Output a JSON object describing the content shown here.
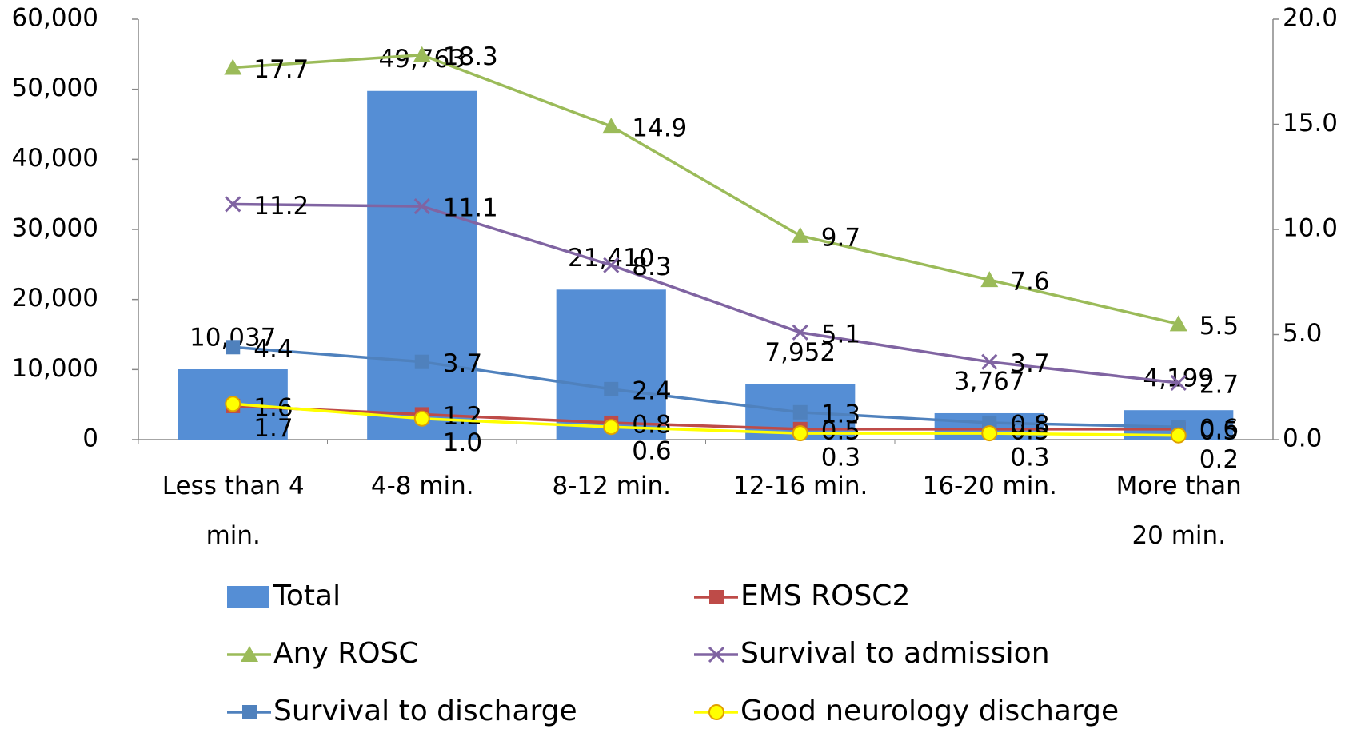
{
  "chart_data": {
    "type": "bar-line",
    "categories": [
      "Less than 4 min.",
      "4-8 min.",
      "8-12 min.",
      "12-16 min.",
      "16-20 min.",
      "More than 20 min."
    ],
    "ylim": [
      0,
      60000
    ],
    "yticks": [
      {
        "value": 0,
        "label": "0"
      },
      {
        "value": 10000,
        "label": "10,000"
      },
      {
        "value": 20000,
        "label": "20,000"
      },
      {
        "value": 30000,
        "label": "30,000"
      },
      {
        "value": 40000,
        "label": "40,000"
      },
      {
        "value": 50000,
        "label": "50,000"
      },
      {
        "value": 60000,
        "label": "60,000"
      }
    ],
    "y2lim": [
      0,
      20
    ],
    "y2ticks": [
      {
        "value": 0,
        "label": "0.0"
      },
      {
        "value": 5,
        "label": "5.0"
      },
      {
        "value": 10,
        "label": "10.0"
      },
      {
        "value": 15,
        "label": "15.0"
      },
      {
        "value": 20,
        "label": "20.0"
      }
    ],
    "grid": false,
    "series": [
      {
        "name": "Total",
        "color": "#558ed5",
        "values": [
          10037,
          49763,
          21410,
          7952,
          3767,
          4199
        ],
        "value_labels": [
          "10,037",
          "49,763",
          "21,410",
          "7,952",
          "3,767",
          "4,199"
        ]
      },
      {
        "name": "EMS ROSC2",
        "color": "#be4b48",
        "axis": "y2",
        "marker": "square",
        "values": [
          1.6,
          1.2,
          0.8,
          0.5,
          0.5,
          0.5
        ]
      },
      {
        "name": "Any ROSC",
        "color": "#9bbb59",
        "axis": "y2",
        "marker": "triangle",
        "values": [
          17.7,
          18.3,
          14.9,
          9.7,
          7.6,
          5.5
        ]
      },
      {
        "name": "Survival to admission",
        "color": "#8064a2",
        "axis": "y2",
        "marker": "x",
        "values": [
          11.2,
          11.1,
          8.3,
          5.1,
          3.7,
          2.7
        ]
      },
      {
        "name": "Survival to discharge",
        "color": "#4f81bd",
        "axis": "y2",
        "marker": "square",
        "values": [
          4.4,
          3.7,
          2.4,
          1.3,
          0.8,
          0.6
        ]
      },
      {
        "name": "Good neurology discharge",
        "color": "#ffff00",
        "axis": "y2",
        "marker": "circle",
        "values": [
          1.7,
          1.0,
          0.6,
          0.3,
          0.3,
          0.2
        ],
        "value_labels": [
          "1.7",
          "1.0",
          "0.6",
          "0.3",
          "0.3",
          "0.2"
        ]
      }
    ]
  }
}
